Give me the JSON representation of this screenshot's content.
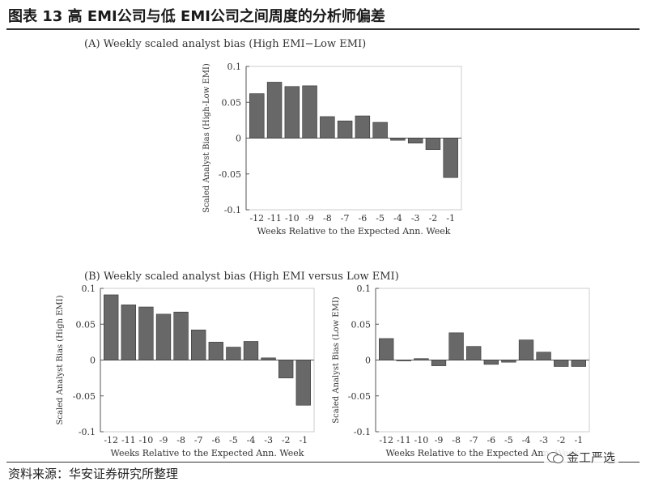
{
  "header": {
    "title": "图表 13 高 EMI公司与低 EMI公司之间周度的分析师偏差"
  },
  "footer": {
    "source": "资料来源：华安证券研究所整理",
    "watermark": "金工严选"
  },
  "panel_b": {
    "title": "(B) Weekly scaled analyst bias (High EMI versus Low EMI)"
  },
  "colors": {
    "bar": "#686868",
    "bar_stroke": "#333333",
    "axis": "#555555",
    "grid": "#cccccc"
  },
  "chart_data": [
    {
      "type": "bar",
      "id": "chart-a",
      "title": "(A) Weekly scaled analyst bias (High EMI−Low EMI)",
      "xlabel": "Weeks Relative to the Expected Ann. Week",
      "ylabel": "Scaled Analyst Bias (High-Low EMI)",
      "categories": [
        "-12",
        "-11",
        "-10",
        "-9",
        "-8",
        "-7",
        "-6",
        "-5",
        "-4",
        "-3",
        "-2",
        "-1"
      ],
      "values": [
        0.062,
        0.078,
        0.072,
        0.073,
        0.03,
        0.024,
        0.031,
        0.022,
        -0.003,
        -0.007,
        -0.016,
        -0.055
      ],
      "ylim": [
        -0.1,
        0.1
      ],
      "yticks": [
        0.1,
        0.05,
        0,
        -0.05,
        -0.1
      ],
      "ytick_labels": [
        "0.1",
        "0.05",
        "0",
        "-0.05",
        "-0.1"
      ],
      "grid": true
    },
    {
      "type": "bar",
      "id": "chart-b-high",
      "title": "",
      "xlabel": "Weeks Relative to the Expected Ann. Week",
      "ylabel": "Scaled Analyst Bias (High EMI)",
      "categories": [
        "-12",
        "-11",
        "-10",
        "-9",
        "-8",
        "-7",
        "-6",
        "-5",
        "-4",
        "-3",
        "-2",
        "-1"
      ],
      "values": [
        0.091,
        0.077,
        0.074,
        0.064,
        0.067,
        0.042,
        0.025,
        0.018,
        0.026,
        0.003,
        -0.025,
        -0.063
      ],
      "ylim": [
        -0.1,
        0.1
      ],
      "yticks": [
        0.1,
        0.05,
        0,
        -0.05,
        -0.1
      ],
      "ytick_labels": [
        "0.1",
        "0.05",
        "0",
        "-0.05",
        "-0.1"
      ],
      "grid": true
    },
    {
      "type": "bar",
      "id": "chart-b-low",
      "title": "",
      "xlabel": "Weeks Relative to the Expected Ann. Week",
      "ylabel": "Scaled Analyst Bias (Low EMI)",
      "categories": [
        "-12",
        "-11",
        "-10",
        "-9",
        "-8",
        "-7",
        "-6",
        "-5",
        "-4",
        "-3",
        "-2",
        "-1"
      ],
      "values": [
        0.03,
        -0.001,
        0.002,
        -0.008,
        0.038,
        0.019,
        -0.006,
        -0.003,
        0.028,
        0.011,
        -0.009,
        -0.009
      ],
      "ylim": [
        -0.1,
        0.1
      ],
      "yticks": [
        0.1,
        0.05,
        0,
        -0.05,
        -0.1
      ],
      "ytick_labels": [
        "0.1",
        "0.05",
        "0",
        "-0.05",
        "-0.1"
      ],
      "grid": true
    }
  ]
}
